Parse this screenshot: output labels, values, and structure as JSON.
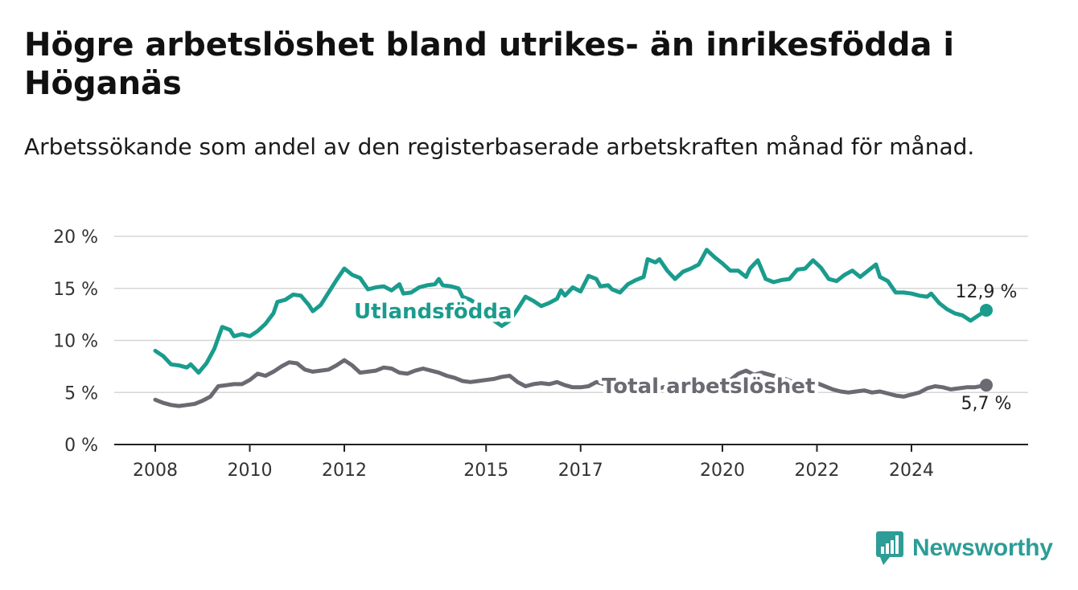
{
  "page": {
    "title": "Högre arbetslöshet bland utrikes- än inrikesfödda i Höganäs",
    "subtitle": "Arbetssökande som andel av den registerbaserade arbetskraften månad för månad.",
    "brand": "Newsworthy",
    "brand_color": "#2d9d96"
  },
  "chart_data": {
    "type": "line",
    "title": "Högre arbetslöshet bland utrikes- än inrikesfödda i Höganäs",
    "subtitle": "Arbetssökande som andel av den registerbaserade arbetskraften månad för månad.",
    "xlabel": "",
    "ylabel": "",
    "x_ticks": [
      "2008",
      "2010",
      "2012",
      "2015",
      "2017",
      "2020",
      "2022",
      "2024"
    ],
    "y_ticks": [
      "0 %",
      "5 %",
      "10 %",
      "15 %",
      "20 %"
    ],
    "ylim": [
      0,
      20
    ],
    "xlim": [
      "2008-01",
      "2025-08"
    ],
    "grid": "horizontal",
    "legend": "inline labels",
    "series": [
      {
        "name": "Utlandsfödda",
        "color": "#1a9c8d",
        "end_label": "12,9 %",
        "points": [
          [
            "2008-01",
            9.0
          ],
          [
            "2008-03",
            8.5
          ],
          [
            "2008-05",
            7.7
          ],
          [
            "2008-07",
            7.6
          ],
          [
            "2008-09",
            7.4
          ],
          [
            "2008-10",
            7.7
          ],
          [
            "2008-12",
            6.9
          ],
          [
            "2009-02",
            7.8
          ],
          [
            "2009-04",
            9.2
          ],
          [
            "2009-06",
            11.3
          ],
          [
            "2009-08",
            11.0
          ],
          [
            "2009-09",
            10.4
          ],
          [
            "2009-11",
            10.6
          ],
          [
            "2010-01",
            10.4
          ],
          [
            "2010-03",
            10.9
          ],
          [
            "2010-05",
            11.6
          ],
          [
            "2010-07",
            12.6
          ],
          [
            "2010-08",
            13.7
          ],
          [
            "2010-10",
            13.9
          ],
          [
            "2010-12",
            14.4
          ],
          [
            "2011-02",
            14.3
          ],
          [
            "2011-04",
            13.4
          ],
          [
            "2011-05",
            12.8
          ],
          [
            "2011-07",
            13.4
          ],
          [
            "2011-09",
            14.6
          ],
          [
            "2011-11",
            15.8
          ],
          [
            "2012-01",
            16.9
          ],
          [
            "2012-03",
            16.3
          ],
          [
            "2012-05",
            16.0
          ],
          [
            "2012-07",
            14.9
          ],
          [
            "2012-09",
            15.1
          ],
          [
            "2012-11",
            15.2
          ],
          [
            "2013-01",
            14.8
          ],
          [
            "2013-03",
            15.4
          ],
          [
            "2013-04",
            14.5
          ],
          [
            "2013-06",
            14.6
          ],
          [
            "2013-08",
            15.1
          ],
          [
            "2013-10",
            15.3
          ],
          [
            "2013-12",
            15.4
          ],
          [
            "2014-01",
            15.9
          ],
          [
            "2014-02",
            15.3
          ],
          [
            "2014-04",
            15.2
          ],
          [
            "2014-06",
            15.0
          ],
          [
            "2014-07",
            14.2
          ],
          [
            "2014-09",
            13.9
          ],
          [
            "2014-11",
            13.4
          ],
          [
            "2015-01",
            12.6
          ],
          [
            "2015-03",
            11.9
          ],
          [
            "2015-05",
            11.4
          ],
          [
            "2015-07",
            11.9
          ],
          [
            "2015-09",
            13.0
          ],
          [
            "2015-11",
            14.2
          ],
          [
            "2016-01",
            13.8
          ],
          [
            "2016-03",
            13.3
          ],
          [
            "2016-05",
            13.6
          ],
          [
            "2016-07",
            14.0
          ],
          [
            "2016-08",
            14.8
          ],
          [
            "2016-09",
            14.3
          ],
          [
            "2016-11",
            15.1
          ],
          [
            "2017-01",
            14.7
          ],
          [
            "2017-03",
            16.2
          ],
          [
            "2017-05",
            15.9
          ],
          [
            "2017-06",
            15.2
          ],
          [
            "2017-08",
            15.3
          ],
          [
            "2017-09",
            14.9
          ],
          [
            "2017-11",
            14.6
          ],
          [
            "2018-01",
            15.4
          ],
          [
            "2018-03",
            15.8
          ],
          [
            "2018-05",
            16.1
          ],
          [
            "2018-06",
            17.8
          ],
          [
            "2018-08",
            17.5
          ],
          [
            "2018-09",
            17.8
          ],
          [
            "2018-11",
            16.7
          ],
          [
            "2019-01",
            15.9
          ],
          [
            "2019-03",
            16.6
          ],
          [
            "2019-05",
            16.9
          ],
          [
            "2019-07",
            17.3
          ],
          [
            "2019-09",
            18.7
          ],
          [
            "2019-11",
            18.0
          ],
          [
            "2020-01",
            17.4
          ],
          [
            "2020-03",
            16.7
          ],
          [
            "2020-05",
            16.7
          ],
          [
            "2020-07",
            16.1
          ],
          [
            "2020-08",
            16.9
          ],
          [
            "2020-10",
            17.7
          ],
          [
            "2020-12",
            15.9
          ],
          [
            "2021-02",
            15.6
          ],
          [
            "2021-04",
            15.8
          ],
          [
            "2021-06",
            15.9
          ],
          [
            "2021-08",
            16.8
          ],
          [
            "2021-10",
            16.9
          ],
          [
            "2021-12",
            17.7
          ],
          [
            "2022-02",
            17.0
          ],
          [
            "2022-04",
            15.9
          ],
          [
            "2022-06",
            15.7
          ],
          [
            "2022-08",
            16.3
          ],
          [
            "2022-10",
            16.7
          ],
          [
            "2022-12",
            16.1
          ],
          [
            "2023-02",
            16.7
          ],
          [
            "2023-04",
            17.3
          ],
          [
            "2023-05",
            16.1
          ],
          [
            "2023-07",
            15.7
          ],
          [
            "2023-09",
            14.6
          ],
          [
            "2023-11",
            14.6
          ],
          [
            "2024-01",
            14.5
          ],
          [
            "2024-03",
            14.3
          ],
          [
            "2024-05",
            14.2
          ],
          [
            "2024-06",
            14.5
          ],
          [
            "2024-08",
            13.6
          ],
          [
            "2024-10",
            13.0
          ],
          [
            "2024-12",
            12.6
          ],
          [
            "2025-02",
            12.4
          ],
          [
            "2025-04",
            11.9
          ],
          [
            "2025-06",
            12.4
          ],
          [
            "2025-08",
            12.9
          ]
        ]
      },
      {
        "name": "Total arbetslöshet",
        "color": "#6b6a73",
        "end_label": "5,7 %",
        "points": [
          [
            "2008-01",
            4.3
          ],
          [
            "2008-03",
            4.0
          ],
          [
            "2008-05",
            3.8
          ],
          [
            "2008-07",
            3.7
          ],
          [
            "2008-09",
            3.8
          ],
          [
            "2008-11",
            3.9
          ],
          [
            "2009-01",
            4.2
          ],
          [
            "2009-03",
            4.6
          ],
          [
            "2009-05",
            5.6
          ],
          [
            "2009-07",
            5.7
          ],
          [
            "2009-09",
            5.8
          ],
          [
            "2009-11",
            5.8
          ],
          [
            "2010-01",
            6.2
          ],
          [
            "2010-03",
            6.8
          ],
          [
            "2010-05",
            6.6
          ],
          [
            "2010-07",
            7.0
          ],
          [
            "2010-09",
            7.5
          ],
          [
            "2010-11",
            7.9
          ],
          [
            "2011-01",
            7.8
          ],
          [
            "2011-03",
            7.2
          ],
          [
            "2011-05",
            7.0
          ],
          [
            "2011-07",
            7.1
          ],
          [
            "2011-09",
            7.2
          ],
          [
            "2011-11",
            7.6
          ],
          [
            "2012-01",
            8.1
          ],
          [
            "2012-03",
            7.6
          ],
          [
            "2012-05",
            6.9
          ],
          [
            "2012-07",
            7.0
          ],
          [
            "2012-09",
            7.1
          ],
          [
            "2012-11",
            7.4
          ],
          [
            "2013-01",
            7.3
          ],
          [
            "2013-03",
            6.9
          ],
          [
            "2013-05",
            6.8
          ],
          [
            "2013-07",
            7.1
          ],
          [
            "2013-09",
            7.3
          ],
          [
            "2013-11",
            7.1
          ],
          [
            "2014-01",
            6.9
          ],
          [
            "2014-03",
            6.6
          ],
          [
            "2014-05",
            6.4
          ],
          [
            "2014-07",
            6.1
          ],
          [
            "2014-09",
            6.0
          ],
          [
            "2014-11",
            6.1
          ],
          [
            "2015-01",
            6.2
          ],
          [
            "2015-03",
            6.3
          ],
          [
            "2015-05",
            6.5
          ],
          [
            "2015-07",
            6.6
          ],
          [
            "2015-09",
            6.0
          ],
          [
            "2015-11",
            5.6
          ],
          [
            "2016-01",
            5.8
          ],
          [
            "2016-03",
            5.9
          ],
          [
            "2016-05",
            5.8
          ],
          [
            "2016-07",
            6.0
          ],
          [
            "2016-09",
            5.7
          ],
          [
            "2016-11",
            5.5
          ],
          [
            "2017-01",
            5.5
          ],
          [
            "2017-03",
            5.6
          ],
          [
            "2017-05",
            6.0
          ],
          [
            "2017-07",
            5.8
          ],
          [
            "2017-09",
            5.5
          ],
          [
            "2017-11",
            5.3
          ],
          [
            "2018-01",
            5.5
          ],
          [
            "2018-03",
            5.6
          ],
          [
            "2018-05",
            5.9
          ],
          [
            "2018-07",
            5.6
          ],
          [
            "2018-09",
            5.4
          ],
          [
            "2018-11",
            5.6
          ],
          [
            "2019-01",
            5.7
          ],
          [
            "2019-03",
            5.8
          ],
          [
            "2019-05",
            6.2
          ],
          [
            "2019-07",
            6.1
          ],
          [
            "2019-09",
            5.8
          ],
          [
            "2019-11",
            5.5
          ],
          [
            "2020-01",
            5.9
          ],
          [
            "2020-03",
            6.2
          ],
          [
            "2020-05",
            6.8
          ],
          [
            "2020-07",
            7.1
          ],
          [
            "2020-09",
            6.7
          ],
          [
            "2020-11",
            6.9
          ],
          [
            "2021-01",
            6.7
          ],
          [
            "2021-03",
            6.5
          ],
          [
            "2021-05",
            6.3
          ],
          [
            "2021-07",
            6.0
          ],
          [
            "2021-09",
            5.7
          ],
          [
            "2021-11",
            5.8
          ],
          [
            "2022-01",
            5.9
          ],
          [
            "2022-03",
            5.6
          ],
          [
            "2022-05",
            5.3
          ],
          [
            "2022-07",
            5.1
          ],
          [
            "2022-09",
            5.0
          ],
          [
            "2022-11",
            5.1
          ],
          [
            "2023-01",
            5.2
          ],
          [
            "2023-03",
            5.0
          ],
          [
            "2023-05",
            5.1
          ],
          [
            "2023-07",
            4.9
          ],
          [
            "2023-09",
            4.7
          ],
          [
            "2023-11",
            4.6
          ],
          [
            "2024-01",
            4.8
          ],
          [
            "2024-03",
            5.0
          ],
          [
            "2024-05",
            5.4
          ],
          [
            "2024-07",
            5.6
          ],
          [
            "2024-09",
            5.5
          ],
          [
            "2024-11",
            5.3
          ],
          [
            "2025-01",
            5.4
          ],
          [
            "2025-03",
            5.5
          ],
          [
            "2025-05",
            5.5
          ],
          [
            "2025-08",
            5.7
          ]
        ]
      }
    ]
  }
}
